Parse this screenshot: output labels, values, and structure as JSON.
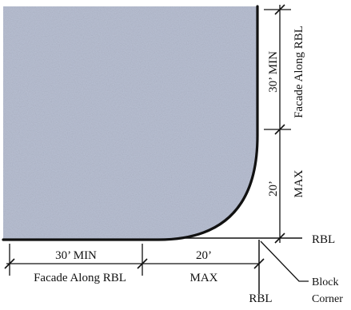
{
  "diagram": {
    "colors": {
      "building_fill": "#b9c0d3",
      "line": "#111111",
      "background": "#ffffff"
    },
    "labels": {
      "bottom_min_value": "30’ MIN",
      "bottom_min_caption": "Facade Along RBL",
      "bottom_max_value": "20’",
      "bottom_max_caption": "MAX",
      "right_min_value": "30’ MIN",
      "right_min_caption": "Facade Along RBL",
      "right_max_value": "20’",
      "right_max_caption": "MAX",
      "rbl_right": "RBL",
      "rbl_bottom": "RBL",
      "block_corner_line1": "Block",
      "block_corner_line2": "Corner"
    }
  }
}
